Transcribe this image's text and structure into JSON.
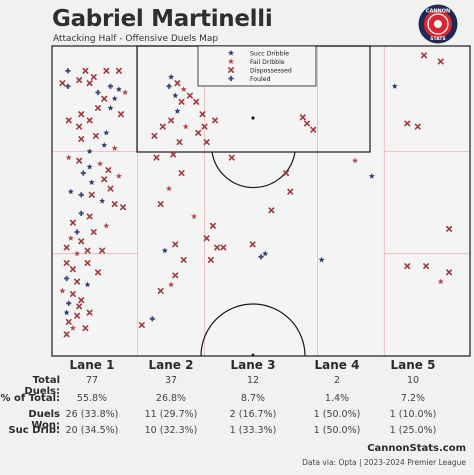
{
  "header": {
    "title": "Gabriel Martinelli",
    "subtitle": "Attacking Half - Offensive Duels Map"
  },
  "logo": {
    "top_text": "CANNON",
    "bottom_text": "STATS",
    "colors": {
      "ring": "#1f2a55",
      "inner": "#d7282f",
      "text": "#ffffff"
    }
  },
  "legend": {
    "items": [
      {
        "label": "Succ Dribble",
        "marker": "star",
        "color": "#2d3a6e"
      },
      {
        "label": "Fail Dribble",
        "marker": "star",
        "color": "#b0474d"
      },
      {
        "label": "Dispossessed",
        "marker": "x",
        "color": "#9c3b3f"
      },
      {
        "label": "Fouled",
        "marker": "plus",
        "color": "#3b4a7a"
      }
    ]
  },
  "chart_data": {
    "type": "scatter",
    "title": "Attacking Half - Offensive Duels Map",
    "x_range": [
      0,
      100
    ],
    "y_range": [
      0,
      100
    ],
    "x_meaning": "pitch width (0 = left touchline)",
    "y_meaning": "attacking half length (0 = goal line, 100 = halfway line)",
    "lanes": [
      "Lane 1",
      "Lane 2",
      "Lane 3",
      "Lane 4",
      "Lane 5"
    ],
    "points": [
      {
        "x": 3.8,
        "y": 8,
        "t": "plus"
      },
      {
        "x": 8,
        "y": 8,
        "t": "x"
      },
      {
        "x": 10,
        "y": 10,
        "t": "x"
      },
      {
        "x": 13,
        "y": 8,
        "t": "x"
      },
      {
        "x": 16,
        "y": 8,
        "t": "x"
      },
      {
        "x": 2.5,
        "y": 12,
        "t": "x"
      },
      {
        "x": 3.8,
        "y": 13,
        "t": "plus"
      },
      {
        "x": 6.5,
        "y": 11,
        "t": "x"
      },
      {
        "x": 9,
        "y": 12,
        "t": "x"
      },
      {
        "x": 14,
        "y": 13,
        "t": "plus"
      },
      {
        "x": 16,
        "y": 14,
        "t": "star_s"
      },
      {
        "x": 17.5,
        "y": 15,
        "t": "star_f"
      },
      {
        "x": 11,
        "y": 15,
        "t": "plus"
      },
      {
        "x": 12.5,
        "y": 17,
        "t": "x"
      },
      {
        "x": 15,
        "y": 17,
        "t": "star_s"
      },
      {
        "x": 14,
        "y": 20,
        "t": "star_s"
      },
      {
        "x": 11,
        "y": 20,
        "t": "x"
      },
      {
        "x": 7,
        "y": 22,
        "t": "x"
      },
      {
        "x": 4,
        "y": 24,
        "t": "x"
      },
      {
        "x": 9,
        "y": 24,
        "t": "x"
      },
      {
        "x": 16.5,
        "y": 22,
        "t": "x"
      },
      {
        "x": 6.5,
        "y": 26,
        "t": "x"
      },
      {
        "x": 13,
        "y": 28,
        "t": "star_s"
      },
      {
        "x": 10.5,
        "y": 29,
        "t": "x"
      },
      {
        "x": 7,
        "y": 30,
        "t": "x"
      },
      {
        "x": 12.5,
        "y": 32,
        "t": "star_s"
      },
      {
        "x": 9,
        "y": 34,
        "t": "star_s"
      },
      {
        "x": 15,
        "y": 33,
        "t": "star_f"
      },
      {
        "x": 4,
        "y": 36,
        "t": "star_f"
      },
      {
        "x": 6.5,
        "y": 37,
        "t": "x"
      },
      {
        "x": 9,
        "y": 39,
        "t": "star_s"
      },
      {
        "x": 11.5,
        "y": 38,
        "t": "star_f"
      },
      {
        "x": 13.5,
        "y": 40,
        "t": "x"
      },
      {
        "x": 7.5,
        "y": 41,
        "t": "plus"
      },
      {
        "x": 16,
        "y": 42,
        "t": "star_f"
      },
      {
        "x": 9.5,
        "y": 44,
        "t": "star_s"
      },
      {
        "x": 12.5,
        "y": 43,
        "t": "x"
      },
      {
        "x": 14,
        "y": 46,
        "t": "x"
      },
      {
        "x": 4.5,
        "y": 47,
        "t": "star_s"
      },
      {
        "x": 7,
        "y": 48,
        "t": "plus"
      },
      {
        "x": 9.5,
        "y": 48,
        "t": "x"
      },
      {
        "x": 12,
        "y": 50,
        "t": "star_s"
      },
      {
        "x": 15,
        "y": 51,
        "t": "x"
      },
      {
        "x": 17,
        "y": 52,
        "t": "x"
      },
      {
        "x": 7,
        "y": 54,
        "t": "plus"
      },
      {
        "x": 9,
        "y": 55,
        "t": "x"
      },
      {
        "x": 5,
        "y": 57,
        "t": "x"
      },
      {
        "x": 13,
        "y": 58,
        "t": "star_f"
      },
      {
        "x": 6,
        "y": 60,
        "t": "plus"
      },
      {
        "x": 10,
        "y": 60,
        "t": "x"
      },
      {
        "x": 4.5,
        "y": 62,
        "t": "star_f"
      },
      {
        "x": 7,
        "y": 63,
        "t": "x"
      },
      {
        "x": 3.5,
        "y": 65,
        "t": "x"
      },
      {
        "x": 6,
        "y": 67,
        "t": "star_f"
      },
      {
        "x": 8.5,
        "y": 66,
        "t": "x"
      },
      {
        "x": 12,
        "y": 66,
        "t": "x"
      },
      {
        "x": 3.5,
        "y": 70,
        "t": "x"
      },
      {
        "x": 8.5,
        "y": 70,
        "t": "x"
      },
      {
        "x": 5,
        "y": 72,
        "t": "x"
      },
      {
        "x": 11,
        "y": 73,
        "t": "x"
      },
      {
        "x": 3.5,
        "y": 75,
        "t": "plus"
      },
      {
        "x": 6,
        "y": 76,
        "t": "x"
      },
      {
        "x": 8.5,
        "y": 77,
        "t": "star_s"
      },
      {
        "x": 2.5,
        "y": 79,
        "t": "star_f"
      },
      {
        "x": 5,
        "y": 80,
        "t": "x"
      },
      {
        "x": 7,
        "y": 82,
        "t": "x"
      },
      {
        "x": 4,
        "y": 83,
        "t": "plus"
      },
      {
        "x": 3.5,
        "y": 86,
        "t": "star_s"
      },
      {
        "x": 6,
        "y": 87,
        "t": "x"
      },
      {
        "x": 4,
        "y": 89,
        "t": "x"
      },
      {
        "x": 5,
        "y": 91,
        "t": "star_f"
      },
      {
        "x": 3.5,
        "y": 93,
        "t": "x"
      },
      {
        "x": 8,
        "y": 91,
        "t": "x"
      },
      {
        "x": 6.5,
        "y": 84,
        "t": "x"
      },
      {
        "x": 9,
        "y": 86,
        "t": "x"
      },
      {
        "x": 28.5,
        "y": 10,
        "t": "star_s"
      },
      {
        "x": 28,
        "y": 13,
        "t": "plus"
      },
      {
        "x": 30,
        "y": 12,
        "t": "x"
      },
      {
        "x": 31.5,
        "y": 14,
        "t": "star_f"
      },
      {
        "x": 29.5,
        "y": 16,
        "t": "star_s"
      },
      {
        "x": 33,
        "y": 16,
        "t": "x"
      },
      {
        "x": 31,
        "y": 18,
        "t": "x"
      },
      {
        "x": 34.5,
        "y": 18,
        "t": "x"
      },
      {
        "x": 30,
        "y": 21,
        "t": "star_s"
      },
      {
        "x": 36,
        "y": 22,
        "t": "x"
      },
      {
        "x": 28.5,
        "y": 24,
        "t": "x"
      },
      {
        "x": 39,
        "y": 24,
        "t": "x"
      },
      {
        "x": 26.5,
        "y": 26,
        "t": "x"
      },
      {
        "x": 32,
        "y": 26,
        "t": "star_f"
      },
      {
        "x": 35,
        "y": 28,
        "t": "x"
      },
      {
        "x": 24.5,
        "y": 29,
        "t": "x"
      },
      {
        "x": 30.5,
        "y": 31,
        "t": "x"
      },
      {
        "x": 37,
        "y": 31,
        "t": "x"
      },
      {
        "x": 29,
        "y": 35,
        "t": "x"
      },
      {
        "x": 25,
        "y": 36,
        "t": "x"
      },
      {
        "x": 31,
        "y": 41,
        "t": "x"
      },
      {
        "x": 28,
        "y": 46,
        "t": "star_f"
      },
      {
        "x": 26,
        "y": 51,
        "t": "x"
      },
      {
        "x": 34,
        "y": 55,
        "t": "star_f"
      },
      {
        "x": 38.5,
        "y": 58,
        "t": "x"
      },
      {
        "x": 37,
        "y": 62,
        "t": "x"
      },
      {
        "x": 29.5,
        "y": 64,
        "t": "x"
      },
      {
        "x": 39.5,
        "y": 65,
        "t": "x"
      },
      {
        "x": 27,
        "y": 66,
        "t": "star_s"
      },
      {
        "x": 31.5,
        "y": 69,
        "t": "x"
      },
      {
        "x": 29.5,
        "y": 74,
        "t": "x"
      },
      {
        "x": 26,
        "y": 79,
        "t": "x"
      },
      {
        "x": 28.5,
        "y": 77,
        "t": "star_f"
      },
      {
        "x": 24,
        "y": 88,
        "t": "plus"
      },
      {
        "x": 21.5,
        "y": 90,
        "t": "x"
      },
      {
        "x": 38,
        "y": 69,
        "t": "x"
      },
      {
        "x": 36.5,
        "y": 26,
        "t": "x"
      },
      {
        "x": 43,
        "y": 36,
        "t": "x"
      },
      {
        "x": 56,
        "y": 41,
        "t": "x"
      },
      {
        "x": 52.5,
        "y": 53,
        "t": "x"
      },
      {
        "x": 48,
        "y": 64,
        "t": "x"
      },
      {
        "x": 51,
        "y": 67,
        "t": "star_s"
      },
      {
        "x": 50,
        "y": 68,
        "t": "plus"
      },
      {
        "x": 41,
        "y": 65,
        "t": "x"
      },
      {
        "x": 57,
        "y": 47,
        "t": "x"
      },
      {
        "x": 60,
        "y": 23,
        "t": "x"
      },
      {
        "x": 61,
        "y": 25,
        "t": "x"
      },
      {
        "x": 62.5,
        "y": 27,
        "t": "x"
      },
      {
        "x": 64.5,
        "y": 69,
        "t": "star_s"
      },
      {
        "x": 72.5,
        "y": 37,
        "t": "star_f"
      },
      {
        "x": 76.5,
        "y": 42,
        "t": "star_s"
      },
      {
        "x": 89,
        "y": 3,
        "t": "x"
      },
      {
        "x": 93,
        "y": 5,
        "t": "x"
      },
      {
        "x": 82,
        "y": 13,
        "t": "star_s"
      },
      {
        "x": 85,
        "y": 25,
        "t": "x"
      },
      {
        "x": 87.5,
        "y": 26,
        "t": "x"
      },
      {
        "x": 95,
        "y": 59,
        "t": "x"
      },
      {
        "x": 85,
        "y": 71,
        "t": "x"
      },
      {
        "x": 89.5,
        "y": 71,
        "t": "x"
      },
      {
        "x": 95,
        "y": 73,
        "t": "x"
      },
      {
        "x": 93,
        "y": 76,
        "t": "star_f"
      }
    ]
  },
  "table": {
    "lanes": [
      "Lane 1",
      "Lane 2",
      "Lane 3",
      "Lane 4",
      "Lane 5"
    ],
    "rows": [
      {
        "label": "Total Duels:",
        "values": [
          "77",
          "37",
          "12",
          "2",
          "10"
        ]
      },
      {
        "label": "% of Total:",
        "values": [
          "55.8%",
          "26.8%",
          "8.7%",
          "1.4%",
          "7.2%"
        ]
      },
      {
        "label": "Duels Won:",
        "values": [
          "26 (33.8%)",
          "11 (29.7%)",
          "2 (16.7%)",
          "1 (50.0%)",
          "1 (10.0%)"
        ]
      },
      {
        "label": "Suc Drib:",
        "values": [
          "20 (34.5%)",
          "10 (32.3%)",
          "1 (33.3%)",
          "1 (50.0%)",
          "1 (25.0%)"
        ]
      }
    ]
  },
  "footer": {
    "brand": "CannonStats.com",
    "source": "Data via: Opta | 2023-2024 Premier League"
  },
  "colors": {
    "star_s": "#2d3a6e",
    "star_f": "#b0474d",
    "x": "#9c3b3f",
    "plus": "#3b4a7a",
    "lines": "#1a1a1a",
    "lane_lines": "#e8b5b5"
  }
}
